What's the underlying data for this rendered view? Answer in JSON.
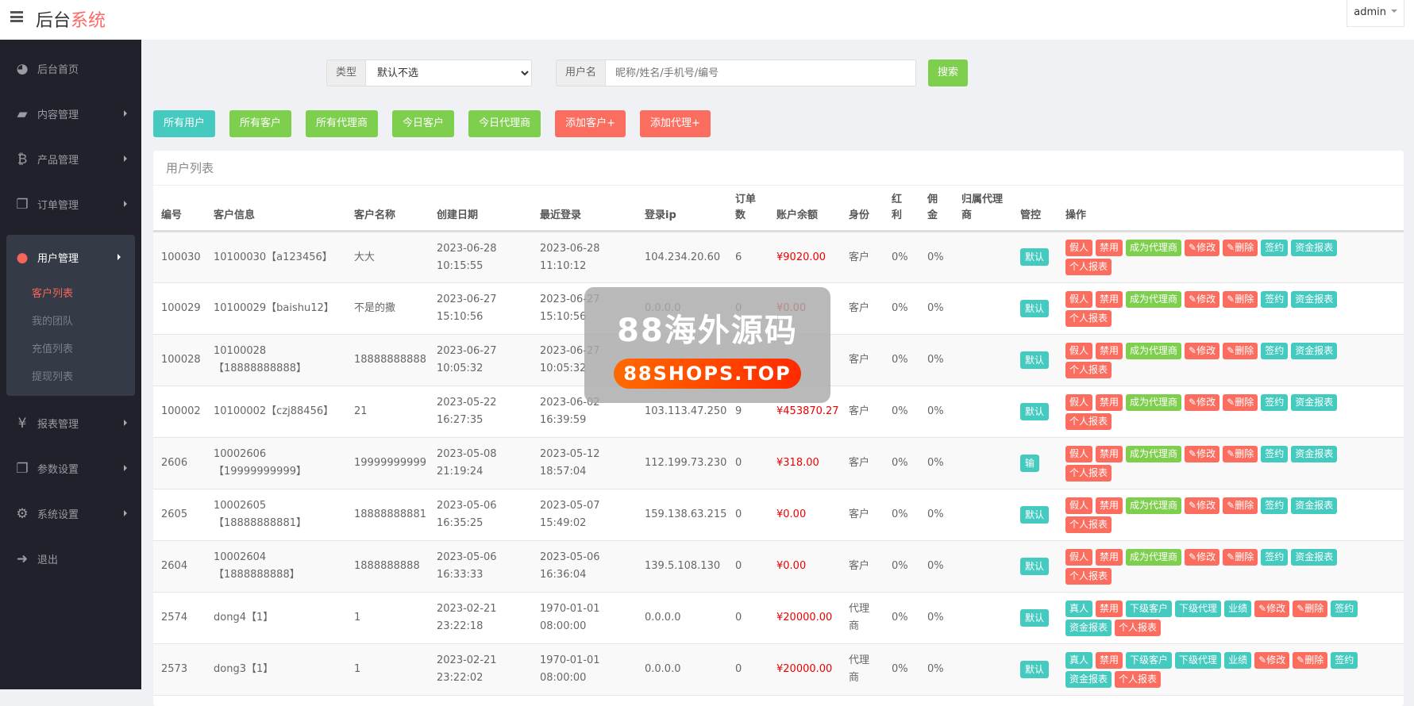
{
  "header": {
    "title_main": "后台",
    "title_accent": "系统",
    "user": "admin"
  },
  "sidebar": {
    "items": [
      {
        "label": "后台首页",
        "icon": "dashboard-icon"
      },
      {
        "label": "内容管理",
        "icon": "book-icon"
      },
      {
        "label": "产品管理",
        "icon": "bitcoin-icon"
      },
      {
        "label": "订单管理",
        "icon": "copy-icon"
      },
      {
        "label": "用户管理",
        "icon": "user-icon"
      },
      {
        "label": "报表管理",
        "icon": "yen-icon"
      },
      {
        "label": "参数设置",
        "icon": "copy-icon"
      },
      {
        "label": "系统设置",
        "icon": "gears-icon"
      },
      {
        "label": "退出",
        "icon": "sign-out-icon"
      }
    ],
    "sub": [
      "客户列表",
      "我的团队",
      "充值列表",
      "提现列表"
    ]
  },
  "search": {
    "type_label": "类型",
    "type_value": "默认不选",
    "user_label": "用户名",
    "placeholder": "昵称/姓名/手机号/编号",
    "button": "搜索"
  },
  "quick": [
    {
      "label": "所有用户",
      "color": "#45cac0"
    },
    {
      "label": "所有客户",
      "color": "#7ecf4e"
    },
    {
      "label": "所有代理商",
      "color": "#7ecf4e"
    },
    {
      "label": "今日客户",
      "color": "#7ecf4e"
    },
    {
      "label": "今日代理商",
      "color": "#7ecf4e"
    },
    {
      "label": "添加客户+",
      "color": "#fb6e5f"
    },
    {
      "label": "添加代理+",
      "color": "#fb6e5f"
    }
  ],
  "panel": {
    "title": "用户列表"
  },
  "columns": [
    "编号",
    "客户信息",
    "客户名称",
    "创建日期",
    "最近登录",
    "登录ip",
    "订单数",
    "账户余额",
    "身份",
    "红利",
    "佣金",
    "归属代理商",
    "管控",
    "操作"
  ],
  "colors": {
    "red": "#fb6e5f",
    "green": "#7ecf4e",
    "teal": "#45cac0"
  },
  "ops_customer": [
    {
      "label": "假人",
      "color": "red"
    },
    {
      "label": "禁用",
      "color": "red"
    },
    {
      "label": "成为代理商",
      "color": "green"
    },
    {
      "label": "修改",
      "color": "red",
      "icon": "pencil-icon"
    },
    {
      "label": "删除",
      "color": "red",
      "icon": "pencil-icon"
    },
    {
      "label": "签约",
      "color": "teal"
    },
    {
      "label": "资金报表",
      "color": "teal"
    },
    {
      "label": "个人报表",
      "color": "red"
    }
  ],
  "ops_agent": [
    {
      "label": "真人",
      "color": "teal"
    },
    {
      "label": "禁用",
      "color": "red"
    },
    {
      "label": "下级客户",
      "color": "teal"
    },
    {
      "label": "下级代理",
      "color": "teal"
    },
    {
      "label": "业绩",
      "color": "teal"
    },
    {
      "label": "修改",
      "color": "red",
      "icon": "pencil-icon"
    },
    {
      "label": "删除",
      "color": "red",
      "icon": "pencil-icon"
    },
    {
      "label": "签约",
      "color": "teal"
    },
    {
      "label": "资金报表",
      "color": "teal"
    },
    {
      "label": "个人报表",
      "color": "red"
    }
  ],
  "rows": [
    {
      "id": "100030",
      "info": "10100030【a123456】",
      "name": "大大",
      "created": [
        "2023-06-28",
        "10:15:55"
      ],
      "login": [
        "2023-06-28",
        "11:10:12"
      ],
      "ip": "104.234.20.60",
      "orders": "6",
      "balance": "¥9020.00",
      "role": "客户",
      "bonus": "0%",
      "commission": "0%",
      "agent": "",
      "control": "默认",
      "ops": "customer"
    },
    {
      "id": "100029",
      "info": "10100029【baishu12】",
      "name": "不是的撒",
      "created": [
        "2023-06-27",
        "15:10:56"
      ],
      "login": [
        "2023-06-27",
        "15:10:56"
      ],
      "ip": "0.0.0.0",
      "orders": "0",
      "balance": "¥0.00",
      "role": "客户",
      "bonus": "0%",
      "commission": "0%",
      "agent": "",
      "control": "默认",
      "ops": "customer"
    },
    {
      "id": "100028",
      "info": "10100028【18888888888】",
      "name": "18888888888",
      "created": [
        "2023-06-27",
        "10:05:32"
      ],
      "login": [
        "2023-06-27",
        "10:05:32"
      ],
      "ip": "",
      "orders": "",
      "balance": "",
      "role": "客户",
      "bonus": "0%",
      "commission": "0%",
      "agent": "",
      "control": "默认",
      "ops": "customer"
    },
    {
      "id": "100002",
      "info": "10100002【czj88456】",
      "name": "21",
      "created": [
        "2023-05-22",
        "16:27:35"
      ],
      "login": [
        "2023-06-02",
        "16:39:59"
      ],
      "ip": "103.113.47.250",
      "orders": "9",
      "balance": "¥453870.27",
      "role": "客户",
      "bonus": "0%",
      "commission": "0%",
      "agent": "",
      "control": "默认",
      "ops": "customer"
    },
    {
      "id": "2606",
      "info": "10002606【19999999999】",
      "name": "19999999999",
      "created": [
        "2023-05-08",
        "21:19:24"
      ],
      "login": [
        "2023-05-12",
        "18:57:04"
      ],
      "ip": "112.199.73.230",
      "orders": "0",
      "balance": "¥318.00",
      "role": "客户",
      "bonus": "0%",
      "commission": "0%",
      "agent": "",
      "control": "输",
      "ops": "customer"
    },
    {
      "id": "2605",
      "info": "10002605【18888888881】",
      "name": "18888888881",
      "created": [
        "2023-05-06",
        "16:35:25"
      ],
      "login": [
        "2023-05-07",
        "15:49:02"
      ],
      "ip": "159.138.63.215",
      "orders": "0",
      "balance": "¥0.00",
      "role": "客户",
      "bonus": "0%",
      "commission": "0%",
      "agent": "",
      "control": "默认",
      "ops": "customer"
    },
    {
      "id": "2604",
      "info": "10002604【1888888888】",
      "name": "1888888888",
      "created": [
        "2023-05-06",
        "16:33:33"
      ],
      "login": [
        "2023-05-06",
        "16:36:04"
      ],
      "ip": "139.5.108.130",
      "orders": "0",
      "balance": "¥0.00",
      "role": "客户",
      "bonus": "0%",
      "commission": "0%",
      "agent": "",
      "control": "默认",
      "ops": "customer"
    },
    {
      "id": "2574",
      "info": "dong4【1】",
      "name": "1",
      "created": [
        "2023-02-21",
        "23:22:18"
      ],
      "login": [
        "1970-01-01",
        "08:00:00"
      ],
      "ip": "0.0.0.0",
      "orders": "0",
      "balance": "¥20000.00",
      "role": "代理商",
      "bonus": "0%",
      "commission": "0%",
      "agent": "",
      "control": "默认",
      "ops": "agent"
    },
    {
      "id": "2573",
      "info": "dong3【1】",
      "name": "1",
      "created": [
        "2023-02-21",
        "23:22:02"
      ],
      "login": [
        "1970-01-01",
        "08:00:00"
      ],
      "ip": "0.0.0.0",
      "orders": "0",
      "balance": "¥20000.00",
      "role": "代理商",
      "bonus": "0%",
      "commission": "0%",
      "agent": "",
      "control": "默认",
      "ops": "agent"
    }
  ],
  "watermark": {
    "line1": "88海外源码",
    "line2": "88SHOPS.TOP"
  }
}
